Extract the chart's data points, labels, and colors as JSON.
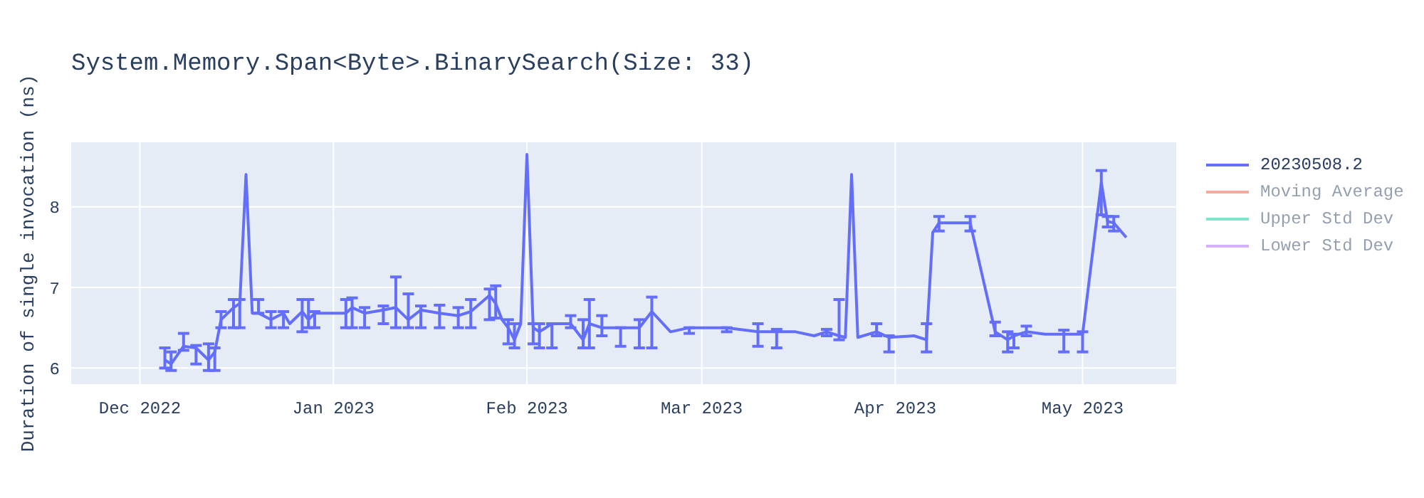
{
  "chart_data": {
    "type": "line",
    "title": "System.Memory.Span<Byte>.BinarySearch(Size: 33)",
    "ylabel": "Duration of single invocation (ns)",
    "x": [
      "2022-12-05",
      "2022-12-06",
      "2022-12-08",
      "2022-12-10",
      "2022-12-12",
      "2022-12-13",
      "2022-12-14",
      "2022-12-16",
      "2022-12-17",
      "2022-12-18",
      "2022-12-19",
      "2022-12-20",
      "2022-12-22",
      "2022-12-24",
      "2022-12-25",
      "2022-12-27",
      "2022-12-28",
      "2022-12-29",
      "2023-01-03",
      "2023-01-04",
      "2023-01-06",
      "2023-01-09",
      "2023-01-11",
      "2023-01-13",
      "2023-01-15",
      "2023-01-18",
      "2023-01-21",
      "2023-01-23",
      "2023-01-26",
      "2023-01-27",
      "2023-01-28",
      "2023-01-29",
      "2023-01-30",
      "2023-01-31",
      "2023-02-01",
      "2023-02-02",
      "2023-02-03",
      "2023-02-05",
      "2023-02-08",
      "2023-02-10",
      "2023-02-11",
      "2023-02-13",
      "2023-02-16",
      "2023-02-19",
      "2023-02-21",
      "2023-02-24",
      "2023-02-27",
      "2023-03-05",
      "2023-03-07",
      "2023-03-10",
      "2023-03-13",
      "2023-03-16",
      "2023-03-19",
      "2023-03-21",
      "2023-03-23",
      "2023-03-24",
      "2023-03-25",
      "2023-03-26",
      "2023-03-29",
      "2023-03-31",
      "2023-04-04",
      "2023-04-06",
      "2023-04-07",
      "2023-04-08",
      "2023-04-10",
      "2023-04-13",
      "2023-04-17",
      "2023-04-19",
      "2023-04-20",
      "2023-04-22",
      "2023-04-25",
      "2023-04-28",
      "2023-05-01",
      "2023-05-03",
      "2023-05-04",
      "2023-05-05",
      "2023-05-06",
      "2023-05-08"
    ],
    "series": [
      {
        "name": "20230508.2",
        "color": "#636efa",
        "values": [
          6.1,
          6.05,
          6.27,
          6.25,
          6.1,
          6.2,
          6.6,
          6.75,
          6.8,
          8.4,
          6.68,
          6.68,
          6.6,
          6.68,
          6.55,
          6.7,
          6.6,
          6.68,
          6.68,
          6.75,
          6.68,
          6.72,
          6.75,
          6.6,
          6.72,
          6.68,
          6.65,
          6.7,
          6.9,
          6.8,
          6.6,
          6.5,
          6.35,
          6.55,
          8.65,
          6.5,
          6.45,
          6.55,
          6.55,
          6.35,
          6.55,
          6.5,
          6.5,
          6.5,
          6.7,
          6.45,
          6.5,
          6.5,
          6.48,
          6.45,
          6.45,
          6.45,
          6.4,
          6.45,
          6.4,
          6.38,
          8.4,
          6.38,
          6.45,
          6.38,
          6.4,
          6.35,
          7.68,
          7.8,
          7.8,
          7.8,
          6.45,
          6.35,
          6.4,
          6.45,
          6.42,
          6.42,
          6.42,
          7.68,
          8.3,
          7.82,
          7.8,
          7.62
        ],
        "errors": [
          [
            6.0,
            6.25
          ],
          [
            5.97,
            6.2
          ],
          [
            6.22,
            6.43
          ],
          [
            6.05,
            6.28
          ],
          [
            5.97,
            6.3
          ],
          [
            5.97,
            6.25
          ],
          [
            6.5,
            6.7
          ],
          [
            6.5,
            6.85
          ],
          [
            6.5,
            6.85
          ],
          null,
          null,
          [
            6.68,
            6.85
          ],
          [
            6.5,
            6.7
          ],
          [
            6.5,
            6.7
          ],
          null,
          [
            6.45,
            6.85
          ],
          [
            6.5,
            6.85
          ],
          [
            6.5,
            6.7
          ],
          [
            6.5,
            6.85
          ],
          [
            6.5,
            6.87
          ],
          [
            6.5,
            6.75
          ],
          [
            6.55,
            6.77
          ],
          [
            6.5,
            7.13
          ],
          [
            6.5,
            6.92
          ],
          [
            6.5,
            6.77
          ],
          [
            6.5,
            6.78
          ],
          [
            6.5,
            6.75
          ],
          [
            6.5,
            6.85
          ],
          [
            6.6,
            6.98
          ],
          [
            6.62,
            7.02
          ],
          null,
          [
            6.3,
            6.6
          ],
          [
            6.25,
            6.55
          ],
          null,
          null,
          [
            6.3,
            6.55
          ],
          [
            6.25,
            6.55
          ],
          [
            6.25,
            6.55
          ],
          [
            6.5,
            6.65
          ],
          [
            6.25,
            6.6
          ],
          [
            6.25,
            6.85
          ],
          [
            6.4,
            6.65
          ],
          [
            6.27,
            6.5
          ],
          [
            6.25,
            6.6
          ],
          [
            6.25,
            6.88
          ],
          null,
          [
            6.43,
            6.5
          ],
          [
            6.45,
            6.5
          ],
          null,
          [
            6.27,
            6.55
          ],
          [
            6.25,
            6.48
          ],
          null,
          null,
          [
            6.4,
            6.48
          ],
          [
            6.35,
            6.85
          ],
          null,
          null,
          null,
          [
            6.4,
            6.55
          ],
          [
            6.2,
            6.4
          ],
          null,
          [
            6.2,
            6.55
          ],
          null,
          [
            7.7,
            7.88
          ],
          null,
          [
            7.7,
            7.88
          ],
          [
            6.4,
            6.57
          ],
          [
            6.2,
            6.45
          ],
          [
            6.25,
            6.42
          ],
          [
            6.4,
            6.52
          ],
          null,
          [
            6.2,
            6.47
          ],
          [
            6.2,
            6.45
          ],
          null,
          [
            7.9,
            8.45
          ],
          [
            7.75,
            7.88
          ],
          [
            7.7,
            7.88
          ],
          null
        ]
      },
      {
        "name": "Moving Average",
        "color": "#ef553b",
        "values": [
          null,
          null,
          null,
          null,
          null,
          null,
          null,
          null,
          null,
          null,
          null,
          null,
          null,
          null,
          null,
          null,
          null,
          null,
          null,
          null,
          null,
          null,
          null,
          null,
          null,
          null,
          null,
          null,
          null,
          null,
          null,
          null,
          null,
          null,
          null,
          null,
          null,
          null,
          null,
          null,
          null,
          null,
          null,
          null,
          null,
          null,
          null,
          null,
          null,
          null,
          null,
          null,
          null,
          null,
          null,
          null,
          null,
          null,
          null,
          null,
          null,
          null,
          null,
          null,
          null,
          null,
          null,
          null,
          null,
          null,
          null,
          null,
          null,
          null,
          null,
          null,
          null,
          null
        ]
      },
      {
        "name": "Upper Std Dev",
        "color": "#00cc96",
        "values": [
          null,
          null,
          null,
          null,
          null,
          null,
          null,
          null,
          null,
          null,
          null,
          null,
          null,
          null,
          null,
          null,
          null,
          null,
          null,
          null,
          null,
          null,
          null,
          null,
          null,
          null,
          null,
          null,
          null,
          null,
          null,
          null,
          null,
          null,
          null,
          null,
          null,
          null,
          null,
          null,
          null,
          null,
          null,
          null,
          null,
          null,
          null,
          null,
          null,
          null,
          null,
          null,
          null,
          null,
          null,
          null,
          null,
          null,
          null,
          null,
          null,
          null,
          null,
          null,
          null,
          null,
          null,
          null,
          null,
          null,
          null,
          null,
          null,
          null,
          null,
          null,
          null,
          null
        ]
      },
      {
        "name": "Lower Std Dev",
        "color": "#ab63fa",
        "values": [
          null,
          null,
          null,
          null,
          null,
          null,
          null,
          null,
          null,
          null,
          null,
          null,
          null,
          null,
          null,
          null,
          null,
          null,
          null,
          null,
          null,
          null,
          null,
          null,
          null,
          null,
          null,
          null,
          null,
          null,
          null,
          null,
          null,
          null,
          null,
          null,
          null,
          null,
          null,
          null,
          null,
          null,
          null,
          null,
          null,
          null,
          null,
          null,
          null,
          null,
          null,
          null,
          null,
          null,
          null,
          null,
          null,
          null,
          null,
          null,
          null,
          null,
          null,
          null,
          null,
          null,
          null,
          null,
          null,
          null,
          null,
          null,
          null,
          null,
          null,
          null,
          null,
          null
        ]
      }
    ],
    "xlim": [
      "2022-11-20",
      "2023-05-16"
    ],
    "xticks": [
      {
        "value": "2022-12-01",
        "label": "Dec 2022"
      },
      {
        "value": "2023-01-01",
        "label": "Jan 2023"
      },
      {
        "value": "2023-02-01",
        "label": "Feb 2023"
      },
      {
        "value": "2023-03-01",
        "label": "Mar 2023"
      },
      {
        "value": "2023-04-01",
        "label": "Apr 2023"
      },
      {
        "value": "2023-05-01",
        "label": "May 2023"
      }
    ],
    "ylim": [
      5.8,
      8.8
    ],
    "yticks": [
      6,
      7,
      8
    ],
    "grid": true,
    "legend": "top right"
  }
}
